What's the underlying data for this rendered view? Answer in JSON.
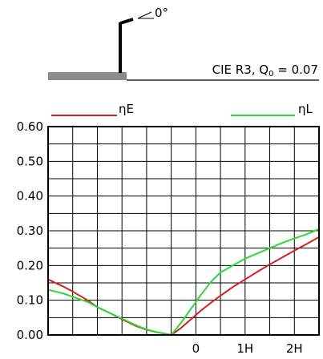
{
  "header": {
    "tilt_label": "0°",
    "info_label_main": "CIE R3, Q",
    "info_label_sub": "0",
    "info_label_value": " = 0.07"
  },
  "colors": {
    "eta_e": "#d42020",
    "eta_l": "#2ed83a",
    "ground": "#8c8c8c",
    "grid": "#000000"
  },
  "chart_data": {
    "type": "line",
    "title": "",
    "xlabel": "",
    "ylabel": "",
    "xlim": [
      -3.0,
      2.5
    ],
    "ylim": [
      0,
      0.6
    ],
    "x_ticks": [
      {
        "value": 0,
        "label": "0"
      },
      {
        "value": 1,
        "label": "1H"
      },
      {
        "value": 2,
        "label": "2H"
      }
    ],
    "y_ticks": [
      {
        "value": 0.0,
        "label": "0.00"
      },
      {
        "value": 0.1,
        "label": "0.10"
      },
      {
        "value": 0.2,
        "label": "0.20"
      },
      {
        "value": 0.3,
        "label": "0.30"
      },
      {
        "value": 0.4,
        "label": "0.40"
      },
      {
        "value": 0.5,
        "label": "0.50"
      },
      {
        "value": 0.6,
        "label": "0.60"
      }
    ],
    "grid": true,
    "legend_position": "top",
    "series": [
      {
        "name": "ηE",
        "color": "#d42020",
        "points": [
          [
            -3.0,
            0.16
          ],
          [
            -2.7,
            0.14
          ],
          [
            -2.5,
            0.125
          ],
          [
            -2.2,
            0.1
          ],
          [
            -2.0,
            0.08
          ],
          [
            -1.7,
            0.06
          ],
          [
            -1.5,
            0.045
          ],
          [
            -1.2,
            0.025
          ],
          [
            -1.0,
            0.015
          ],
          [
            -0.8,
            0.008
          ],
          [
            -0.6,
            0.003
          ],
          [
            -0.5,
            0.0
          ],
          [
            -0.3,
            0.02
          ],
          [
            -0.1,
            0.045
          ],
          [
            0.1,
            0.07
          ],
          [
            0.3,
            0.092
          ],
          [
            0.5,
            0.113
          ],
          [
            0.75,
            0.138
          ],
          [
            1.0,
            0.16
          ],
          [
            1.25,
            0.182
          ],
          [
            1.5,
            0.203
          ],
          [
            1.75,
            0.223
          ],
          [
            2.0,
            0.243
          ],
          [
            2.25,
            0.262
          ],
          [
            2.5,
            0.282
          ]
        ]
      },
      {
        "name": "ηL",
        "color": "#2ed83a",
        "points": [
          [
            -3.0,
            0.13
          ],
          [
            -2.7,
            0.12
          ],
          [
            -2.5,
            0.11
          ],
          [
            -2.2,
            0.095
          ],
          [
            -2.0,
            0.08
          ],
          [
            -1.7,
            0.06
          ],
          [
            -1.5,
            0.047
          ],
          [
            -1.2,
            0.027
          ],
          [
            -1.0,
            0.016
          ],
          [
            -0.8,
            0.008
          ],
          [
            -0.6,
            0.003
          ],
          [
            -0.5,
            0.0
          ],
          [
            -0.3,
            0.035
          ],
          [
            -0.1,
            0.075
          ],
          [
            0.1,
            0.115
          ],
          [
            0.3,
            0.152
          ],
          [
            0.5,
            0.18
          ],
          [
            0.75,
            0.2
          ],
          [
            1.0,
            0.22
          ],
          [
            1.25,
            0.235
          ],
          [
            1.5,
            0.25
          ],
          [
            1.75,
            0.265
          ],
          [
            2.0,
            0.278
          ],
          [
            2.25,
            0.29
          ],
          [
            2.5,
            0.305
          ]
        ]
      }
    ]
  }
}
